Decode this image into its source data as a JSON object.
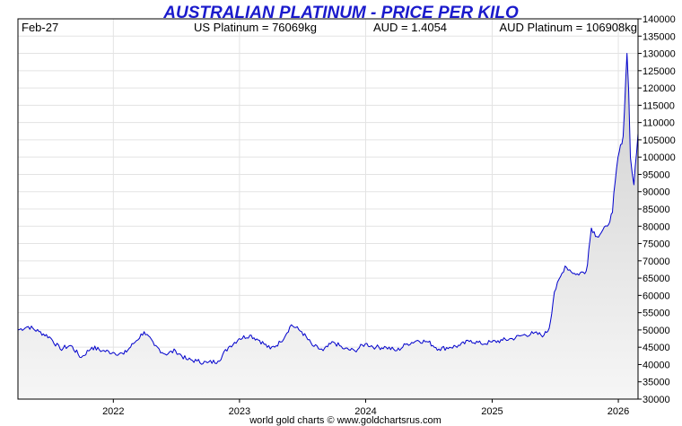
{
  "header": {
    "title": "AUSTRALIAN PLATINUM - PRICE PER KILO",
    "date": "Feb-27",
    "us_price": "US Platinum = 76069kg",
    "fx_rate": "AUD = 1.4054",
    "aud_price": "AUD Platinum = 106908kg"
  },
  "footer": {
    "credit": "world gold charts © www.goldchartsrus.com"
  },
  "colors": {
    "line": "#0000cc",
    "fill_top": "#cfcfcf",
    "fill_bottom": "#f6f6f6",
    "grid": "#e3e3e3",
    "title": "#1a1acc"
  },
  "chart_data": {
    "type": "area",
    "title": "AUSTRALIAN PLATINUM - PRICE PER KILO",
    "xlabel": "",
    "ylabel": "",
    "grid": true,
    "legend": "none",
    "y_axis_position": "right",
    "ylim": [
      30000,
      140000
    ],
    "xlim": [
      "2021-03-31",
      "2026-02-27"
    ],
    "y_ticks": [
      30000,
      35000,
      40000,
      45000,
      50000,
      55000,
      60000,
      65000,
      70000,
      75000,
      80000,
      85000,
      90000,
      95000,
      100000,
      105000,
      110000,
      115000,
      120000,
      125000,
      130000,
      135000,
      140000
    ],
    "x_ticks": [
      {
        "label": "2022",
        "date": "2022-01-01"
      },
      {
        "label": "2023",
        "date": "2023-01-01"
      },
      {
        "label": "2024",
        "date": "2024-01-01"
      },
      {
        "label": "2025",
        "date": "2025-01-01"
      },
      {
        "label": "2026",
        "date": "2026-01-01"
      }
    ],
    "series": [
      {
        "x": [
          "2021-03-31",
          "2021-04-30",
          "2021-05-31",
          "2021-06-30",
          "2021-07-31",
          "2021-08-31",
          "2021-09-30",
          "2021-10-31",
          "2021-11-30",
          "2021-12-31",
          "2022-01-31",
          "2022-02-28",
          "2022-03-31",
          "2022-04-30",
          "2022-05-31",
          "2022-06-30",
          "2022-07-31",
          "2022-08-31",
          "2022-09-30",
          "2022-10-31",
          "2022-11-30",
          "2022-12-31",
          "2023-01-31",
          "2023-02-28",
          "2023-03-31",
          "2023-04-30",
          "2023-05-31",
          "2023-06-30",
          "2023-07-31",
          "2023-08-31",
          "2023-09-30",
          "2023-10-31",
          "2023-11-30",
          "2023-12-31",
          "2024-01-31",
          "2024-02-29",
          "2024-03-31",
          "2024-04-30",
          "2024-05-31",
          "2024-06-30",
          "2024-07-31",
          "2024-08-31",
          "2024-09-30",
          "2024-10-31",
          "2024-11-30",
          "2024-12-31",
          "2025-01-31",
          "2025-02-28",
          "2025-03-31",
          "2025-04-30",
          "2025-05-31",
          "2025-06-15",
          "2025-06-30",
          "2025-07-31",
          "2025-08-31",
          "2025-09-30",
          "2025-10-15",
          "2025-10-31",
          "2025-11-30",
          "2025-12-15",
          "2025-12-31",
          "2026-01-15",
          "2026-01-26",
          "2026-01-31",
          "2026-02-05",
          "2026-02-15",
          "2026-02-27"
        ],
        "y": [
          50000,
          51000,
          49500,
          48000,
          44500,
          45500,
          42000,
          45000,
          44000,
          43500,
          43000,
          46000,
          49500,
          45500,
          43000,
          44000,
          41500,
          41000,
          40500,
          41000,
          45000,
          47500,
          48500,
          47000,
          44500,
          46500,
          51500,
          49500,
          45500,
          44000,
          46500,
          44500,
          44000,
          46000,
          45000,
          45000,
          44000,
          46000,
          47000,
          46500,
          44500,
          45000,
          45500,
          47000,
          46000,
          46500,
          47000,
          47500,
          48500,
          49000,
          48500,
          50500,
          61000,
          68500,
          66000,
          67000,
          79500,
          77000,
          80000,
          84000,
          100000,
          106000,
          130000,
          119000,
          100000,
          92000,
          106908
        ]
      }
    ]
  }
}
